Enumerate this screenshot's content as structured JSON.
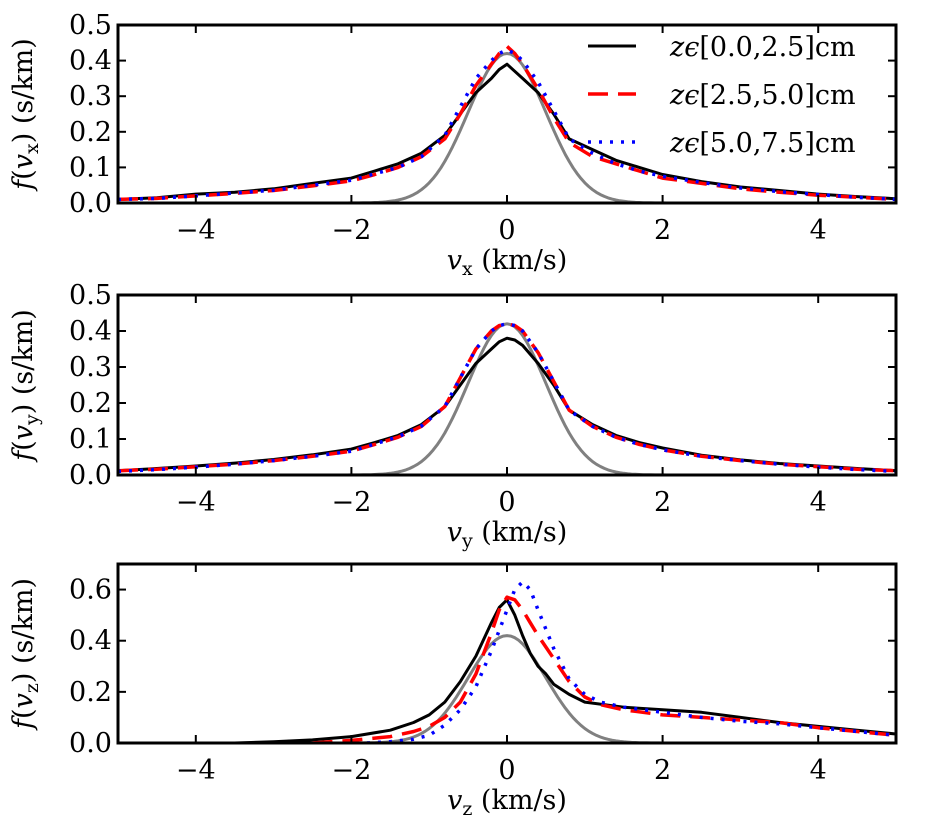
{
  "chart_data": [
    {
      "type": "line",
      "panel": "vx",
      "xlabel_symbol": "v",
      "xlabel_sub": "x",
      "xlabel_units": "(km/s)",
      "ylabel_func": "f",
      "ylabel_symbol": "v",
      "ylabel_sub": "x",
      "ylabel_units": "(s/km)",
      "xlim": [
        -5,
        5
      ],
      "ylim": [
        0,
        0.5
      ],
      "xticks": [
        -4,
        -2,
        0,
        2,
        4
      ],
      "xtick_labels": [
        "−4",
        "−2",
        "0",
        "2",
        "4"
      ],
      "yticks": [
        0.0,
        0.1,
        0.2,
        0.3,
        0.4,
        0.5
      ],
      "ytick_labels": [
        "0.0",
        "0.1",
        "0.2",
        "0.3",
        "0.4",
        "0.5"
      ],
      "legend": {
        "placement": "top-right",
        "entries": [
          {
            "label": "zϵ[0.0,2.5]cm",
            "series": "black"
          },
          {
            "label": "zϵ[2.5,5.0]cm",
            "series": "red"
          },
          {
            "label": "zϵ[5.0,7.5]cm",
            "series": "blue"
          }
        ]
      },
      "series": [
        {
          "name": "zϵ[0.0,2.5]cm",
          "color": "#000000",
          "style": "solid",
          "x": [
            -5,
            -4.5,
            -4,
            -3.5,
            -3,
            -2.5,
            -2,
            -1.7,
            -1.4,
            -1.1,
            -0.8,
            -0.6,
            -0.4,
            -0.2,
            -0.1,
            0,
            0.1,
            0.2,
            0.4,
            0.6,
            0.8,
            1.1,
            1.4,
            1.7,
            2,
            2.5,
            3,
            3.5,
            4,
            4.5,
            5
          ],
          "y": [
            0.01,
            0.015,
            0.025,
            0.03,
            0.04,
            0.055,
            0.07,
            0.09,
            0.11,
            0.14,
            0.19,
            0.25,
            0.31,
            0.35,
            0.375,
            0.39,
            0.37,
            0.35,
            0.31,
            0.25,
            0.18,
            0.15,
            0.12,
            0.1,
            0.08,
            0.06,
            0.045,
            0.035,
            0.025,
            0.018,
            0.012
          ]
        },
        {
          "name": "zϵ[2.5,5.0]cm",
          "color": "#ff0000",
          "style": "dashed",
          "x": [
            -5,
            -4.5,
            -4,
            -3.5,
            -3,
            -2.5,
            -2,
            -1.7,
            -1.4,
            -1.1,
            -0.8,
            -0.6,
            -0.4,
            -0.2,
            -0.1,
            0,
            0.1,
            0.2,
            0.4,
            0.6,
            0.8,
            1.1,
            1.4,
            1.7,
            2,
            2.5,
            3,
            3.5,
            4,
            4.5,
            5
          ],
          "y": [
            0.01,
            0.013,
            0.02,
            0.027,
            0.035,
            0.048,
            0.062,
            0.08,
            0.1,
            0.13,
            0.18,
            0.25,
            0.33,
            0.39,
            0.42,
            0.44,
            0.42,
            0.39,
            0.32,
            0.24,
            0.17,
            0.13,
            0.11,
            0.09,
            0.07,
            0.055,
            0.04,
            0.03,
            0.022,
            0.016,
            0.01
          ]
        },
        {
          "name": "zϵ[5.0,7.5]cm",
          "color": "#0000ff",
          "style": "dotted",
          "x": [
            -5,
            -4.5,
            -4,
            -3.5,
            -3,
            -2.5,
            -2,
            -1.7,
            -1.4,
            -1.1,
            -0.8,
            -0.6,
            -0.4,
            -0.2,
            -0.1,
            0,
            0.1,
            0.2,
            0.4,
            0.6,
            0.8,
            1.1,
            1.4,
            1.7,
            2,
            2.5,
            3,
            3.5,
            4,
            4.5,
            5
          ],
          "y": [
            0.01,
            0.013,
            0.02,
            0.028,
            0.036,
            0.05,
            0.064,
            0.082,
            0.1,
            0.13,
            0.19,
            0.27,
            0.35,
            0.4,
            0.42,
            0.43,
            0.42,
            0.4,
            0.34,
            0.26,
            0.18,
            0.14,
            0.11,
            0.09,
            0.075,
            0.058,
            0.042,
            0.032,
            0.024,
            0.016,
            0.01
          ]
        },
        {
          "name": "Gaussian",
          "color": "#808080",
          "style": "solid",
          "gaussian": {
            "amp": 0.42,
            "mu": 0.0,
            "sigma": 0.5
          }
        }
      ]
    },
    {
      "type": "line",
      "panel": "vy",
      "xlabel_symbol": "v",
      "xlabel_sub": "y",
      "xlabel_units": "(km/s)",
      "ylabel_func": "f",
      "ylabel_symbol": "v",
      "ylabel_sub": "y",
      "ylabel_units": "(s/km)",
      "xlim": [
        -5,
        5
      ],
      "ylim": [
        0,
        0.5
      ],
      "xticks": [
        -4,
        -2,
        0,
        2,
        4
      ],
      "xtick_labels": [
        "−4",
        "−2",
        "0",
        "2",
        "4"
      ],
      "yticks": [
        0.0,
        0.1,
        0.2,
        0.3,
        0.4,
        0.5
      ],
      "ytick_labels": [
        "0.0",
        "0.1",
        "0.2",
        "0.3",
        "0.4",
        "0.5"
      ],
      "series": [
        {
          "name": "zϵ[0.0,2.5]cm",
          "color": "#000000",
          "style": "solid",
          "x": [
            -5,
            -4.5,
            -4,
            -3.5,
            -3,
            -2.5,
            -2,
            -1.7,
            -1.4,
            -1.1,
            -0.8,
            -0.6,
            -0.4,
            -0.2,
            -0.1,
            0,
            0.1,
            0.2,
            0.4,
            0.6,
            0.8,
            1.1,
            1.4,
            1.7,
            2,
            2.5,
            3,
            3.5,
            4,
            4.5,
            5
          ],
          "y": [
            0.012,
            0.018,
            0.025,
            0.033,
            0.043,
            0.056,
            0.072,
            0.09,
            0.11,
            0.14,
            0.19,
            0.25,
            0.31,
            0.35,
            0.37,
            0.38,
            0.375,
            0.36,
            0.31,
            0.25,
            0.18,
            0.14,
            0.11,
            0.09,
            0.075,
            0.055,
            0.042,
            0.032,
            0.025,
            0.018,
            0.012
          ]
        },
        {
          "name": "zϵ[2.5,5.0]cm",
          "color": "#ff0000",
          "style": "dashed",
          "x": [
            -5,
            -4.5,
            -4,
            -3.5,
            -3,
            -2.5,
            -2,
            -1.7,
            -1.4,
            -1.1,
            -0.8,
            -0.6,
            -0.4,
            -0.2,
            -0.1,
            0,
            0.1,
            0.2,
            0.4,
            0.6,
            0.8,
            1.1,
            1.4,
            1.7,
            2,
            2.5,
            3,
            3.5,
            4,
            4.5,
            5
          ],
          "y": [
            0.012,
            0.016,
            0.023,
            0.03,
            0.04,
            0.052,
            0.066,
            0.085,
            0.105,
            0.135,
            0.19,
            0.27,
            0.35,
            0.4,
            0.415,
            0.42,
            0.415,
            0.4,
            0.34,
            0.26,
            0.18,
            0.135,
            0.105,
            0.085,
            0.07,
            0.052,
            0.04,
            0.03,
            0.023,
            0.016,
            0.012
          ]
        },
        {
          "name": "zϵ[5.0,7.5]cm",
          "color": "#0000ff",
          "style": "dotted",
          "x": [
            -5,
            -4.5,
            -4,
            -3.5,
            -3,
            -2.5,
            -2,
            -1.7,
            -1.4,
            -1.1,
            -0.8,
            -0.6,
            -0.4,
            -0.2,
            -0.1,
            0,
            0.1,
            0.2,
            0.4,
            0.6,
            0.8,
            1.1,
            1.4,
            1.7,
            2,
            2.5,
            3,
            3.5,
            4,
            4.5,
            5
          ],
          "y": [
            0.01,
            0.015,
            0.022,
            0.03,
            0.04,
            0.052,
            0.066,
            0.086,
            0.106,
            0.136,
            0.19,
            0.27,
            0.35,
            0.4,
            0.415,
            0.42,
            0.415,
            0.4,
            0.34,
            0.26,
            0.18,
            0.135,
            0.105,
            0.085,
            0.07,
            0.052,
            0.04,
            0.03,
            0.022,
            0.015,
            0.01
          ]
        },
        {
          "name": "Gaussian",
          "color": "#808080",
          "style": "solid",
          "gaussian": {
            "amp": 0.42,
            "mu": 0.0,
            "sigma": 0.5
          }
        }
      ]
    },
    {
      "type": "line",
      "panel": "vz",
      "xlabel_symbol": "v",
      "xlabel_sub": "z",
      "xlabel_units": "(km/s)",
      "ylabel_func": "f",
      "ylabel_symbol": "v",
      "ylabel_sub": "z",
      "ylabel_units": "(s/km)",
      "xlim": [
        -5,
        5
      ],
      "ylim": [
        0,
        0.7
      ],
      "xticks": [
        -4,
        -2,
        0,
        2,
        4
      ],
      "xtick_labels": [
        "−4",
        "−2",
        "0",
        "2",
        "4"
      ],
      "yticks": [
        0.0,
        0.2,
        0.4,
        0.6
      ],
      "ytick_labels": [
        "0.0",
        "0.2",
        "0.4",
        "0.6"
      ],
      "series": [
        {
          "name": "zϵ[0.0,2.5]cm",
          "color": "#000000",
          "style": "solid",
          "x": [
            -3.5,
            -3,
            -2.5,
            -2,
            -1.5,
            -1.2,
            -1,
            -0.8,
            -0.6,
            -0.4,
            -0.2,
            -0.1,
            0,
            0.1,
            0.2,
            0.3,
            0.4,
            0.5,
            0.6,
            0.8,
            1,
            1.5,
            2,
            2.5,
            3,
            3.5,
            4,
            4.5,
            5
          ],
          "y": [
            0.0,
            0.005,
            0.012,
            0.025,
            0.05,
            0.08,
            0.11,
            0.16,
            0.24,
            0.34,
            0.47,
            0.53,
            0.56,
            0.5,
            0.42,
            0.35,
            0.3,
            0.27,
            0.23,
            0.19,
            0.16,
            0.14,
            0.13,
            0.12,
            0.1,
            0.08,
            0.065,
            0.05,
            0.035
          ]
        },
        {
          "name": "zϵ[2.5,5.0]cm",
          "color": "#ff0000",
          "style": "dashed",
          "x": [
            -2.5,
            -2,
            -1.5,
            -1.2,
            -1,
            -0.8,
            -0.6,
            -0.4,
            -0.2,
            -0.1,
            0,
            0.1,
            0.2,
            0.3,
            0.4,
            0.6,
            0.8,
            1,
            1.2,
            1.5,
            2,
            2.5,
            3,
            3.5,
            4,
            4.5,
            5
          ],
          "y": [
            0.0,
            0.01,
            0.025,
            0.045,
            0.065,
            0.1,
            0.16,
            0.27,
            0.43,
            0.52,
            0.57,
            0.56,
            0.52,
            0.47,
            0.42,
            0.33,
            0.24,
            0.18,
            0.15,
            0.13,
            0.11,
            0.1,
            0.09,
            0.08,
            0.06,
            0.045,
            0.03
          ]
        },
        {
          "name": "zϵ[5.0,7.5]cm",
          "color": "#0000ff",
          "style": "dotted",
          "x": [
            -1.8,
            -1.5,
            -1.2,
            -1,
            -0.8,
            -0.6,
            -0.4,
            -0.2,
            0,
            0.1,
            0.2,
            0.3,
            0.4,
            0.6,
            0.8,
            1,
            1.2,
            1.5,
            2,
            2.5,
            3,
            3.5,
            4,
            4.5,
            5
          ],
          "y": [
            0.0,
            0.005,
            0.015,
            0.03,
            0.07,
            0.13,
            0.22,
            0.36,
            0.52,
            0.6,
            0.63,
            0.6,
            0.52,
            0.37,
            0.25,
            0.19,
            0.16,
            0.14,
            0.12,
            0.1,
            0.085,
            0.075,
            0.06,
            0.045,
            0.03
          ]
        },
        {
          "name": "Gaussian",
          "color": "#808080",
          "style": "solid",
          "gaussian": {
            "amp": 0.42,
            "mu": 0.0,
            "sigma": 0.5
          }
        }
      ]
    }
  ]
}
